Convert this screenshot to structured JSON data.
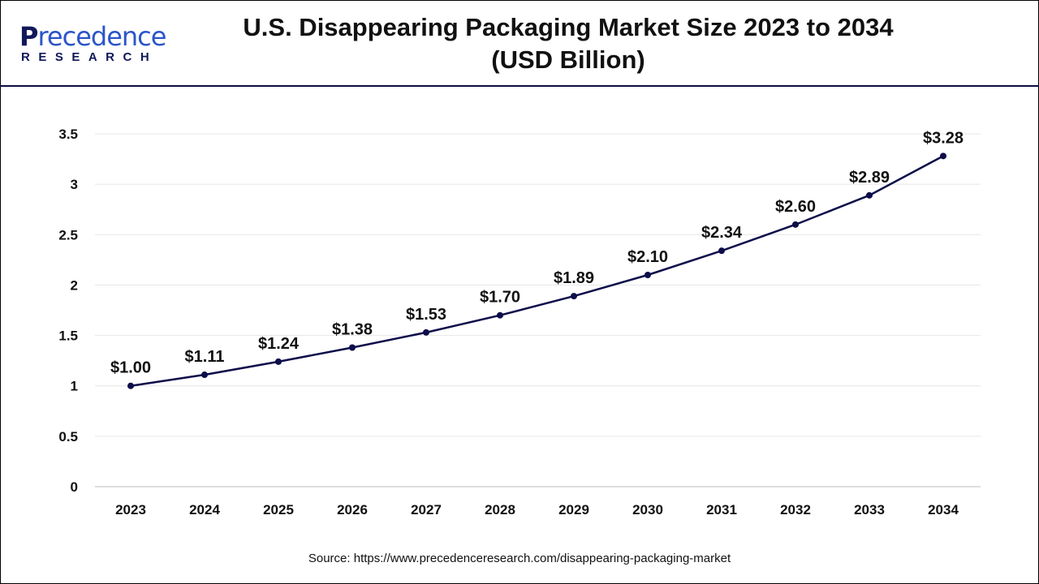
{
  "brand": {
    "logo_main": "Precedence",
    "logo_sub": "RESEARCH",
    "accent": "#2b55c8",
    "dark": "#10185a"
  },
  "header": {
    "title_line1": "U.S. Disappearing Packaging Market Size 2023 to 2034",
    "title_line2": "(USD Billion)"
  },
  "source": "Source: https://www.precedenceresearch.com/disappearing-packaging-market",
  "chart_data": {
    "type": "line",
    "title": "U.S. Disappearing Packaging Market Size 2023 to 2034 (USD Billion)",
    "categories": [
      "2023",
      "2024",
      "2025",
      "2026",
      "2027",
      "2028",
      "2029",
      "2030",
      "2031",
      "2032",
      "2033",
      "2034"
    ],
    "series": [
      {
        "values": [
          1.0,
          1.11,
          1.24,
          1.38,
          1.53,
          1.7,
          1.89,
          2.1,
          2.34,
          2.6,
          2.89,
          3.28
        ],
        "color": "#0d0d4a"
      }
    ],
    "data_labels": [
      "$1.00",
      "$1.11",
      "$1.24",
      "$1.38",
      "$1.53",
      "$1.70",
      "$1.89",
      "$2.10",
      "$2.34",
      "$2.60",
      "$2.89",
      "$3.28"
    ],
    "ylim": [
      0,
      3.5
    ],
    "yticks": [
      "0",
      "0.5",
      "1",
      "1.5",
      "2",
      "2.5",
      "3",
      "3.5"
    ],
    "grid": true,
    "legend": "none"
  }
}
